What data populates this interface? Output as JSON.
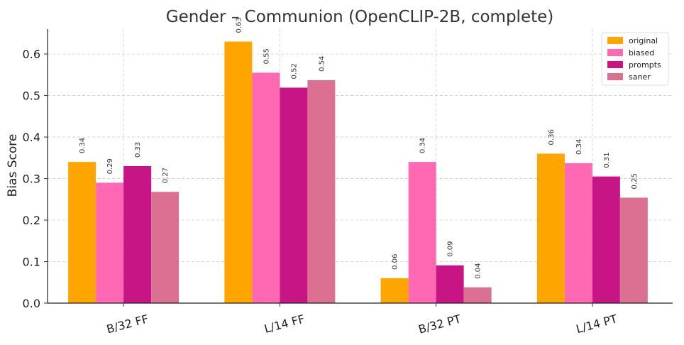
{
  "chart_data": {
    "type": "bar",
    "title": "Gender – Communion (OpenCLIP-2B, complete)",
    "xlabel": "",
    "ylabel": "Bias Score",
    "ylim": [
      0,
      0.66
    ],
    "yticks": [
      "0.0",
      "0.1",
      "0.2",
      "0.3",
      "0.4",
      "0.5",
      "0.6"
    ],
    "categories": [
      "B/32 FF",
      "L/14 FF",
      "B/32 PT",
      "L/14 PT"
    ],
    "series": [
      {
        "name": "original",
        "color": "#FFA500",
        "values": [
          0.34,
          0.63,
          0.06,
          0.36
        ],
        "labels": [
          "0.34",
          "0.63",
          "0.06",
          "0.36"
        ]
      },
      {
        "name": "biased",
        "color": "#FF69B4",
        "values": [
          0.29,
          0.555,
          0.34,
          0.337
        ],
        "labels": [
          "0.29",
          "0.55",
          "0.34",
          "0.34"
        ]
      },
      {
        "name": "prompts",
        "color": "#C71585",
        "values": [
          0.33,
          0.519,
          0.091,
          0.305
        ],
        "labels": [
          "0.33",
          "0.52",
          "0.09",
          "0.31"
        ]
      },
      {
        "name": "saner",
        "color": "#DB7093",
        "values": [
          0.268,
          0.537,
          0.038,
          0.254
        ],
        "labels": [
          "0.27",
          "0.54",
          "0.04",
          "0.25"
        ]
      }
    ],
    "grid": true,
    "legend": "top-right"
  }
}
